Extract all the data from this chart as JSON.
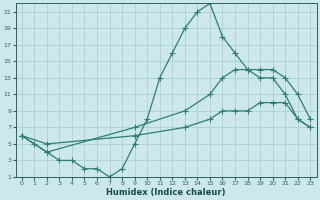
{
  "xlabel": "Humidex (Indice chaleur)",
  "bg_color": "#cce8ec",
  "grid_color": "#aacfd5",
  "line_color": "#2d7d78",
  "xlim": [
    -0.5,
    23.5
  ],
  "ylim": [
    1,
    22
  ],
  "xticks": [
    0,
    1,
    2,
    3,
    4,
    5,
    6,
    7,
    8,
    9,
    10,
    11,
    12,
    13,
    14,
    15,
    16,
    17,
    18,
    19,
    20,
    21,
    22,
    23
  ],
  "yticks": [
    1,
    3,
    5,
    7,
    9,
    11,
    13,
    15,
    17,
    19,
    21
  ],
  "line1_x": [
    0,
    1,
    2,
    3,
    4,
    5,
    6,
    7,
    8,
    9,
    10,
    11,
    12,
    13,
    14,
    15,
    16,
    17,
    18,
    19,
    20,
    21,
    22,
    23
  ],
  "line1_y": [
    6,
    5,
    4,
    3,
    3,
    2,
    2,
    1,
    2,
    5,
    8,
    13,
    16,
    19,
    21,
    22,
    18,
    16,
    14,
    13,
    13,
    11,
    8,
    7
  ],
  "line2_x": [
    0,
    2,
    9,
    13,
    15,
    16,
    17,
    18,
    19,
    20,
    21,
    22,
    23
  ],
  "line2_y": [
    6,
    4,
    7,
    9,
    11,
    13,
    14,
    14,
    14,
    14,
    13,
    11,
    8
  ],
  "line3_x": [
    0,
    2,
    9,
    13,
    15,
    16,
    17,
    18,
    19,
    20,
    21,
    22,
    23
  ],
  "line3_y": [
    6,
    5,
    6,
    7,
    8,
    9,
    9,
    9,
    10,
    10,
    10,
    8,
    7
  ]
}
